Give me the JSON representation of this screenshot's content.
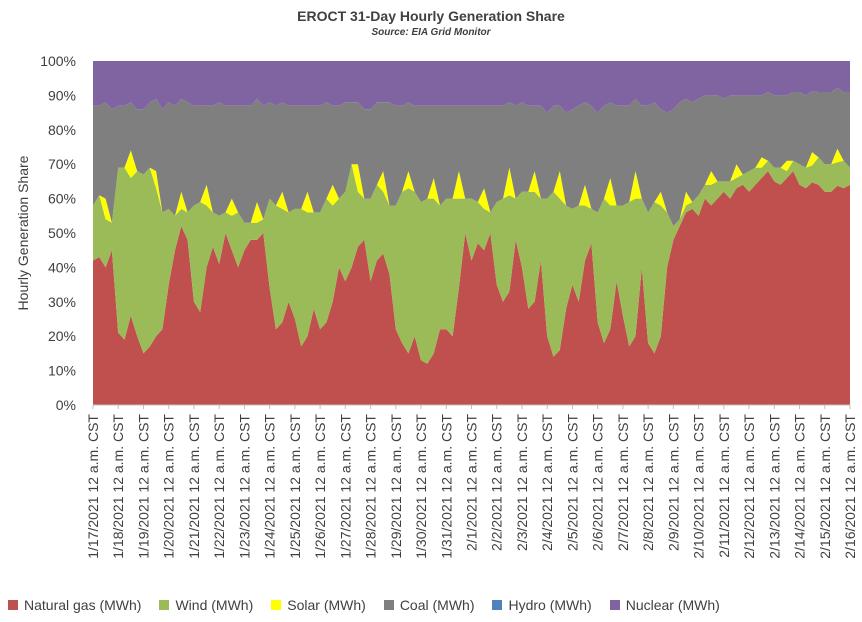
{
  "chart_data": {
    "type": "area",
    "stacked": true,
    "title": "EROCT 31-Day Hourly Generation Share",
    "subtitle": "Source: EIA Grid Monitor",
    "ylabel": "Hourly Generation Share",
    "ylim": [
      0,
      100
    ],
    "y_ticks": [
      "0%",
      "10%",
      "20%",
      "30%",
      "40%",
      "50%",
      "60%",
      "70%",
      "80%",
      "90%",
      "100%"
    ],
    "grid": false,
    "legend_position": "bottom",
    "x_labels": [
      "1/17/2021 12 a.m. CST",
      "1/18/2021 12 a.m. CST",
      "1/19/2021 12 a.m. CST",
      "1/20/2021 12 a.m. CST",
      "1/21/2021 12 a.m. CST",
      "1/22/2021 12 a.m. CST",
      "1/23/2021 12 a.m. CST",
      "1/24/2021 12 a.m. CST",
      "1/25/2021 12 a.m. CST",
      "1/26/2021 12 a.m. CST",
      "1/27/2021 12 a.m. CST",
      "1/28/2021 12 a.m. CST",
      "1/29/2021 12 a.m. CST",
      "1/30/2021 12 a.m. CST",
      "1/31/2021 12 a.m. CST",
      "2/1/2021 12 a.m. CST",
      "2/2/2021 12 a.m. CST",
      "2/3/2021 12 a.m. CST",
      "2/4/2021 12 a.m. CST",
      "2/5/2021 12 a.m. CST",
      "2/6/2021 12 a.m. CST",
      "2/7/2021 12 a.m. CST",
      "2/8/2021 12 a.m. CST",
      "2/9/2021 12 a.m. CST",
      "2/10/2021 12 a.m. CST",
      "2/11/2021 12 a.m. CST",
      "2/12/2021 12 a.m. CST",
      "2/13/2021 12 a.m. CST",
      "2/14/2021 12 a.m. CST",
      "2/15/2021 12 a.m. CST",
      "2/16/2021 12 a.m. CST"
    ],
    "day_offsets": [
      0,
      0.25,
      0.5,
      0.75
    ],
    "series": [
      {
        "name": "Natural gas (MWh)",
        "color": "#C0504D",
        "values": [
          [
            42,
            43,
            40,
            45
          ],
          [
            21,
            19,
            26,
            20
          ],
          [
            15,
            17,
            20,
            22
          ],
          [
            35,
            45,
            52,
            48
          ],
          [
            30,
            27,
            40,
            46
          ],
          [
            41,
            50,
            45,
            40
          ],
          [
            45,
            48,
            48,
            50
          ],
          [
            34,
            22,
            24,
            30
          ],
          [
            25,
            17,
            20,
            28
          ],
          [
            22,
            24,
            30,
            40
          ],
          [
            36,
            40,
            46,
            48
          ],
          [
            36,
            42,
            44,
            38
          ],
          [
            22,
            18,
            15,
            20
          ],
          [
            13,
            12,
            15,
            22
          ],
          [
            22,
            20,
            34,
            50
          ],
          [
            42,
            47,
            45,
            50
          ],
          [
            35,
            30,
            33,
            48
          ],
          [
            40,
            28,
            30,
            42
          ],
          [
            20,
            14,
            16,
            28
          ],
          [
            35,
            30,
            42,
            47
          ],
          [
            24,
            18,
            22,
            36
          ],
          [
            26,
            17,
            20,
            40
          ],
          [
            18,
            15,
            20,
            40
          ],
          [
            48,
            52,
            56,
            57
          ],
          [
            55,
            60,
            58,
            60
          ],
          [
            62,
            60,
            63,
            64
          ],
          [
            62,
            64,
            66,
            68
          ],
          [
            65,
            64,
            66,
            68
          ],
          [
            64,
            63,
            66,
            64
          ],
          [
            62,
            62,
            65,
            63
          ],
          [
            64,
            70,
            70,
            70
          ]
        ]
      },
      {
        "name": "Wind (MWh)",
        "color": "#9BBB59",
        "values": [
          [
            16,
            18,
            14,
            8
          ],
          [
            48,
            50,
            40,
            48
          ],
          [
            52,
            52,
            43,
            34
          ],
          [
            22,
            10,
            5,
            8
          ],
          [
            28,
            32,
            18,
            10
          ],
          [
            14,
            6,
            10,
            16
          ],
          [
            8,
            5,
            5,
            4
          ],
          [
            26,
            36,
            33,
            26
          ],
          [
            32,
            40,
            36,
            28
          ],
          [
            34,
            36,
            28,
            20
          ],
          [
            26,
            30,
            16,
            12
          ],
          [
            24,
            22,
            18,
            20
          ],
          [
            36,
            44,
            48,
            42
          ],
          [
            46,
            48,
            45,
            36
          ],
          [
            38,
            40,
            26,
            10
          ],
          [
            18,
            12,
            12,
            6
          ],
          [
            24,
            30,
            28,
            12
          ],
          [
            22,
            34,
            32,
            18
          ],
          [
            40,
            48,
            44,
            30
          ],
          [
            22,
            28,
            16,
            10
          ],
          [
            32,
            42,
            36,
            22
          ],
          [
            32,
            42,
            40,
            20
          ],
          [
            38,
            44,
            38,
            16
          ],
          [
            4,
            2,
            2,
            2
          ],
          [
            6,
            4,
            6,
            5
          ],
          [
            3,
            5,
            3,
            3
          ],
          [
            6,
            5,
            3,
            3
          ],
          [
            4,
            5,
            2,
            3
          ],
          [
            6,
            6,
            5,
            8
          ],
          [
            8,
            8,
            7,
            8
          ],
          [
            5,
            1,
            1,
            1
          ]
        ]
      },
      {
        "name": "Solar (MWh)",
        "color": "#FFFF00",
        "values": [
          [
            0,
            0,
            6,
            0
          ],
          [
            0,
            0,
            8,
            0
          ],
          [
            0,
            0,
            5,
            0
          ],
          [
            0,
            0,
            5,
            0
          ],
          [
            0,
            0,
            6,
            0
          ],
          [
            0,
            0,
            5,
            0
          ],
          [
            0,
            0,
            6,
            0
          ],
          [
            0,
            0,
            5,
            0
          ],
          [
            0,
            0,
            6,
            0
          ],
          [
            0,
            0,
            6,
            0
          ],
          [
            0,
            0,
            8,
            0
          ],
          [
            0,
            0,
            6,
            0
          ],
          [
            0,
            0,
            5,
            0
          ],
          [
            0,
            0,
            6,
            0
          ],
          [
            0,
            0,
            8,
            0
          ],
          [
            0,
            0,
            6,
            0
          ],
          [
            0,
            0,
            8,
            0
          ],
          [
            0,
            0,
            6,
            0
          ],
          [
            0,
            0,
            8,
            0
          ],
          [
            0,
            0,
            6,
            0
          ],
          [
            0,
            0,
            8,
            0
          ],
          [
            0,
            0,
            8,
            0
          ],
          [
            0,
            0,
            4,
            0
          ],
          [
            0,
            0,
            4,
            0
          ],
          [
            0,
            0,
            4,
            0
          ],
          [
            0,
            0,
            4,
            0
          ],
          [
            0,
            0,
            3,
            0
          ],
          [
            0,
            0,
            3,
            0
          ],
          [
            0,
            0,
            4,
            0
          ],
          [
            0,
            0,
            4,
            0
          ],
          [
            0,
            0,
            3,
            0
          ]
        ]
      },
      {
        "name": "Coal (MWh)",
        "color": "#7F7F7F",
        "values": [
          [
            29,
            26,
            28,
            33
          ],
          [
            18,
            18,
            14,
            18
          ],
          [
            19,
            19,
            21,
            30
          ],
          [
            31,
            32,
            27,
            32
          ],
          [
            29,
            28,
            23,
            31
          ],
          [
            33,
            31,
            27,
            31
          ],
          [
            34,
            34,
            30,
            33
          ],
          [
            28,
            29,
            26,
            31
          ],
          [
            30,
            30,
            25,
            31
          ],
          [
            31,
            28,
            23,
            27
          ],
          [
            26,
            18,
            18,
            26
          ],
          [
            26,
            24,
            20,
            30
          ],
          [
            29,
            25,
            20,
            25
          ],
          [
            28,
            27,
            21,
            29
          ],
          [
            27,
            27,
            19,
            27
          ],
          [
            27,
            28,
            24,
            31
          ],
          [
            28,
            27,
            19,
            27
          ],
          [
            26,
            25,
            19,
            27
          ],
          [
            25,
            25,
            19,
            27
          ],
          [
            29,
            29,
            24,
            30
          ],
          [
            29,
            27,
            22,
            29
          ],
          [
            29,
            28,
            21,
            27
          ],
          [
            31,
            29,
            24,
            29
          ],
          [
            34,
            34,
            27,
            29
          ],
          [
            28,
            26,
            22,
            25
          ],
          [
            24,
            25,
            20,
            23
          ],
          [
            22,
            21,
            18,
            20
          ],
          [
            21,
            21,
            19,
            20
          ],
          [
            21,
            21,
            18,
            19
          ],
          [
            21,
            21,
            18,
            20
          ],
          [
            22,
            20,
            17,
            20
          ]
        ]
      },
      {
        "name": "Hydro (MWh)",
        "color": "#4F81BD",
        "values": [
          [
            0,
            0,
            0,
            0
          ],
          [
            0,
            0,
            0,
            0
          ],
          [
            0,
            0,
            0,
            0
          ],
          [
            0,
            0,
            0,
            0
          ],
          [
            0,
            0,
            0,
            0
          ],
          [
            0,
            0,
            0,
            0
          ],
          [
            0,
            0,
            0,
            0
          ],
          [
            0,
            0,
            0,
            0
          ],
          [
            0,
            0,
            0,
            0
          ],
          [
            0,
            0,
            0,
            0
          ],
          [
            0,
            0,
            0,
            0
          ],
          [
            0,
            0,
            0,
            0
          ],
          [
            0,
            0,
            0,
            0
          ],
          [
            0,
            0,
            0,
            0
          ],
          [
            0,
            0,
            0,
            0
          ],
          [
            0,
            0,
            0,
            0
          ],
          [
            0,
            0,
            0,
            0
          ],
          [
            0,
            0,
            0,
            0
          ],
          [
            0,
            0,
            0,
            0
          ],
          [
            0,
            0,
            0,
            0
          ],
          [
            0,
            0,
            0,
            0
          ],
          [
            0,
            0,
            0,
            0
          ],
          [
            0,
            0,
            0,
            0
          ],
          [
            0,
            0,
            0,
            0
          ],
          [
            0,
            0,
            0,
            0
          ],
          [
            0,
            0,
            0,
            0
          ],
          [
            0,
            0,
            0,
            0
          ],
          [
            0,
            0,
            0,
            0
          ],
          [
            0,
            0,
            0,
            0
          ],
          [
            0,
            0,
            0,
            0
          ],
          [
            0,
            0,
            0,
            0
          ]
        ]
      },
      {
        "name": "Nuclear (MWh)",
        "color": "#8064A2",
        "values": [
          [
            13,
            13,
            12,
            14
          ],
          [
            13,
            13,
            12,
            14
          ],
          [
            14,
            12,
            11,
            14
          ],
          [
            12,
            13,
            11,
            12
          ],
          [
            13,
            13,
            13,
            13
          ],
          [
            12,
            13,
            13,
            13
          ],
          [
            13,
            13,
            11,
            13
          ],
          [
            12,
            13,
            12,
            13
          ],
          [
            13,
            13,
            13,
            13
          ],
          [
            13,
            12,
            13,
            13
          ],
          [
            12,
            12,
            12,
            14
          ],
          [
            14,
            12,
            12,
            12
          ],
          [
            13,
            13,
            12,
            13
          ],
          [
            13,
            13,
            13,
            13
          ],
          [
            13,
            13,
            13,
            13
          ],
          [
            13,
            13,
            13,
            13
          ],
          [
            13,
            13,
            12,
            13
          ],
          [
            12,
            13,
            13,
            13
          ],
          [
            15,
            13,
            13,
            15
          ],
          [
            14,
            13,
            12,
            13
          ],
          [
            15,
            13,
            12,
            13
          ],
          [
            13,
            13,
            11,
            13
          ],
          [
            13,
            12,
            14,
            15
          ],
          [
            14,
            12,
            11,
            12
          ],
          [
            11,
            10,
            10,
            10
          ],
          [
            11,
            10,
            10,
            10
          ],
          [
            10,
            10,
            10,
            9
          ],
          [
            10,
            10,
            10,
            9
          ],
          [
            9,
            10,
            9,
            9
          ],
          [
            9,
            9,
            8,
            9
          ],
          [
            9,
            9,
            9,
            9
          ]
        ]
      }
    ]
  }
}
